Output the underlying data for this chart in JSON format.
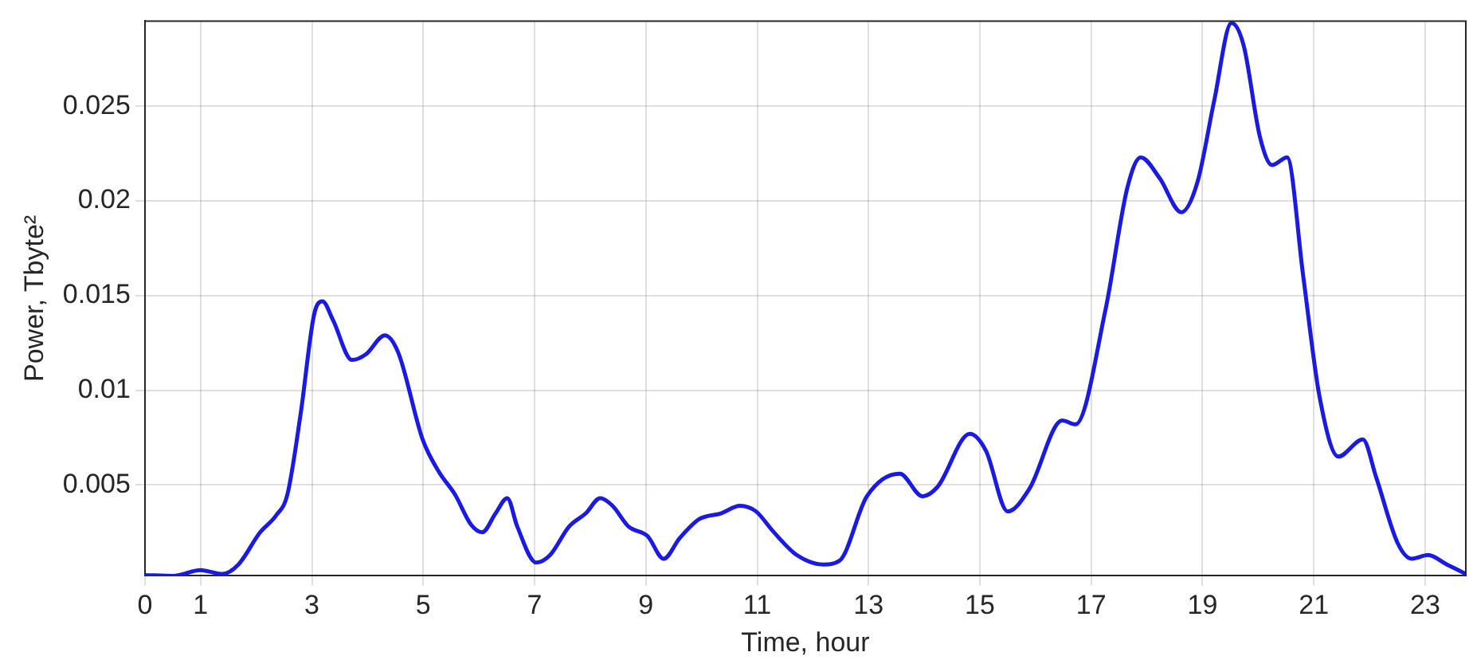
{
  "chart_data": {
    "type": "line",
    "xlabel": "Time, hour",
    "ylabel": "Power, Tbyte²",
    "xlim": [
      0,
      23.73
    ],
    "ylim": [
      0.0002,
      0.0295
    ],
    "xticks": [
      0,
      1,
      3,
      5,
      7,
      9,
      11,
      13,
      15,
      17,
      19,
      21,
      23
    ],
    "yticks": [
      0.005,
      0.01,
      0.015,
      0.02,
      0.025
    ],
    "grid": true,
    "legend": false,
    "marker": "none",
    "line_style": "solid",
    "x": [
      0,
      0.51,
      1.0,
      1.39,
      1.68,
      2.07,
      2.36,
      2.56,
      2.8,
      3.04,
      3.19,
      3.38,
      3.72,
      3.97,
      4.31,
      4.55,
      4.99,
      5.28,
      5.57,
      5.86,
      6.06,
      6.3,
      6.51,
      6.69,
      7.03,
      7.28,
      7.62,
      7.92,
      8.18,
      8.4,
      8.69,
      9.03,
      9.32,
      9.61,
      9.96,
      10.35,
      10.69,
      10.98,
      11.27,
      11.71,
      12.19,
      12.48,
      12.97,
      13.56,
      13.97,
      14.24,
      14.82,
      15.11,
      15.5,
      15.89,
      16.48,
      16.72,
      17.26,
      17.65,
      17.89,
      18.23,
      18.62,
      18.91,
      19.21,
      19.52,
      19.74,
      20.03,
      20.25,
      20.52,
      20.81,
      21.1,
      21.44,
      21.88,
      22.12,
      22.51,
      22.76,
      23.05,
      23.39,
      23.73
    ],
    "series": [
      {
        "color": "#1a1ae6",
        "values": [
          0.00024,
          0.0002,
          0.0005,
          0.0003,
          0.0008,
          0.0025,
          0.0034,
          0.0045,
          0.0088,
          0.014,
          0.0147,
          0.0137,
          0.0116,
          0.0119,
          0.0129,
          0.012,
          0.0074,
          0.0057,
          0.0045,
          0.0029,
          0.0025,
          0.0035,
          0.0043,
          0.0028,
          0.0009,
          0.0013,
          0.0028,
          0.0035,
          0.0043,
          0.0039,
          0.0028,
          0.0023,
          0.0011,
          0.0022,
          0.0032,
          0.0035,
          0.0039,
          0.0036,
          0.0026,
          0.0013,
          0.0008,
          0.001,
          0.0044,
          0.0056,
          0.0044,
          0.0049,
          0.0077,
          0.0068,
          0.0036,
          0.0048,
          0.0084,
          0.0082,
          0.0143,
          0.0207,
          0.0223,
          0.0212,
          0.0194,
          0.021,
          0.0253,
          0.0294,
          0.0282,
          0.0234,
          0.0219,
          0.0223,
          0.016,
          0.0097,
          0.0065,
          0.0074,
          0.0054,
          0.0019,
          0.0011,
          0.0013,
          0.0008,
          0.0003
        ]
      }
    ]
  }
}
